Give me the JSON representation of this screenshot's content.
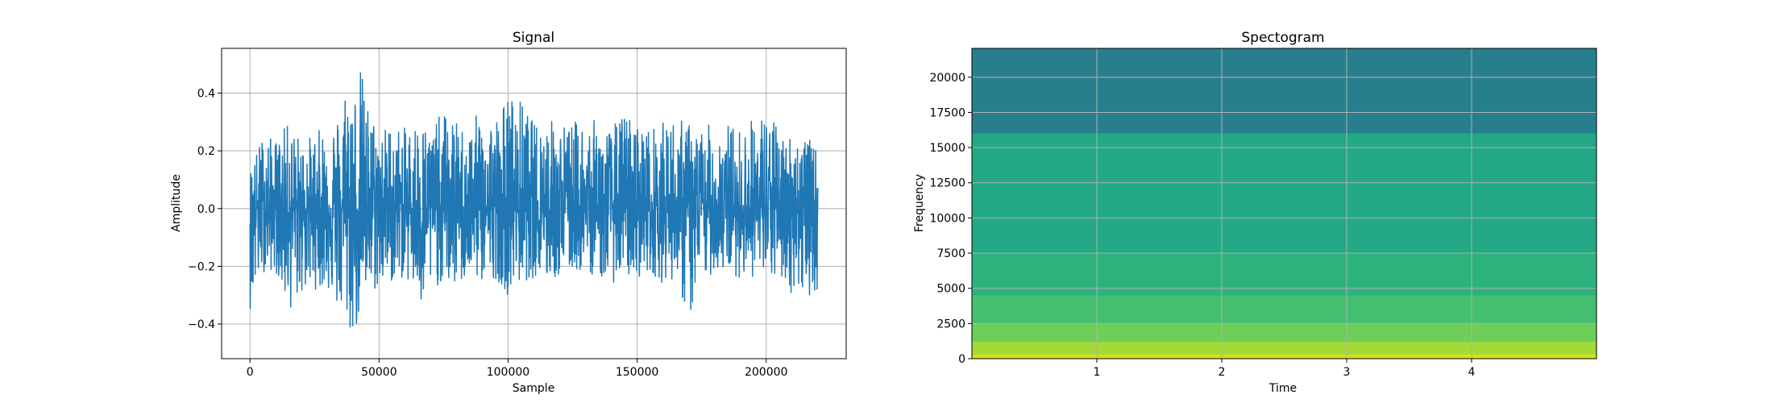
{
  "chart_data": [
    {
      "type": "line",
      "title": "Signal",
      "xlabel": "Sample",
      "ylabel": "Amplitude",
      "xlim": [
        -11000,
        231000
      ],
      "ylim": [
        -0.52,
        0.555
      ],
      "xticks": [
        0,
        50000,
        100000,
        150000,
        200000
      ],
      "yticks": [
        -0.4,
        -0.2,
        0.0,
        0.2,
        0.4
      ],
      "xtick_labels": [
        "0",
        "50000",
        "100000",
        "150000",
        "200000"
      ],
      "ytick_labels": [
        "−0.4",
        "−0.2",
        "0.0",
        "0.2",
        "0.4"
      ],
      "grid": true,
      "color": "#1f77b4",
      "envelope": {
        "x": [
          0,
          5000,
          10000,
          15000,
          20000,
          25000,
          30000,
          35000,
          38000,
          40000,
          43000,
          45000,
          50000,
          55000,
          60000,
          65000,
          68000,
          70000,
          75000,
          80000,
          85000,
          90000,
          95000,
          100000,
          105000,
          110000,
          115000,
          120000,
          125000,
          130000,
          135000,
          140000,
          145000,
          150000,
          155000,
          160000,
          165000,
          170000,
          175000,
          180000,
          185000,
          190000,
          195000,
          200000,
          205000,
          210000,
          215000,
          220000
        ],
        "max": [
          0.14,
          0.26,
          0.24,
          0.3,
          0.24,
          0.26,
          0.3,
          0.34,
          0.51,
          0.42,
          0.5,
          0.38,
          0.28,
          0.3,
          0.28,
          0.32,
          0.3,
          0.28,
          0.34,
          0.3,
          0.28,
          0.36,
          0.32,
          0.4,
          0.38,
          0.3,
          0.32,
          0.3,
          0.3,
          0.32,
          0.3,
          0.28,
          0.34,
          0.3,
          0.28,
          0.3,
          0.32,
          0.3,
          0.28,
          0.3,
          0.3,
          0.28,
          0.32,
          0.34,
          0.28,
          0.26,
          0.26,
          0.2
        ],
        "min": [
          -0.35,
          -0.22,
          -0.22,
          -0.36,
          -0.3,
          -0.28,
          -0.28,
          -0.38,
          -0.42,
          -0.47,
          -0.36,
          -0.32,
          -0.28,
          -0.26,
          -0.24,
          -0.32,
          -0.43,
          -0.28,
          -0.26,
          -0.28,
          -0.24,
          -0.26,
          -0.24,
          -0.3,
          -0.26,
          -0.24,
          -0.26,
          -0.24,
          -0.22,
          -0.22,
          -0.24,
          -0.26,
          -0.24,
          -0.24,
          -0.22,
          -0.26,
          -0.24,
          -0.4,
          -0.26,
          -0.22,
          -0.22,
          -0.24,
          -0.24,
          -0.26,
          -0.24,
          -0.3,
          -0.3,
          -0.3
        ]
      }
    },
    {
      "type": "heatmap",
      "title": "Spectogram",
      "xlabel": "Time",
      "ylabel": "Frequency",
      "xlim": [
        0,
        5
      ],
      "ylim": [
        0,
        22050
      ],
      "xticks": [
        1,
        2,
        3,
        4
      ],
      "yticks": [
        0,
        2500,
        5000,
        7500,
        10000,
        12500,
        15000,
        17500,
        20000
      ],
      "xtick_labels": [
        "1",
        "2",
        "3",
        "4"
      ],
      "ytick_labels": [
        "0",
        "2500",
        "5000",
        "7500",
        "10000",
        "12500",
        "15000",
        "17500",
        "20000"
      ],
      "grid": true,
      "colormap": "viridis",
      "bands": [
        {
          "from": 0,
          "to": 300,
          "color": "#d5e21a"
        },
        {
          "from": 300,
          "to": 1200,
          "color": "#a2da37"
        },
        {
          "from": 1200,
          "to": 2500,
          "color": "#6ece58"
        },
        {
          "from": 2500,
          "to": 4500,
          "color": "#44bf70"
        },
        {
          "from": 4500,
          "to": 7500,
          "color": "#2db27d"
        },
        {
          "from": 7500,
          "to": 16000,
          "color": "#22a884"
        },
        {
          "from": 16000,
          "to": 22050,
          "color": "#277f8e"
        }
      ]
    }
  ]
}
